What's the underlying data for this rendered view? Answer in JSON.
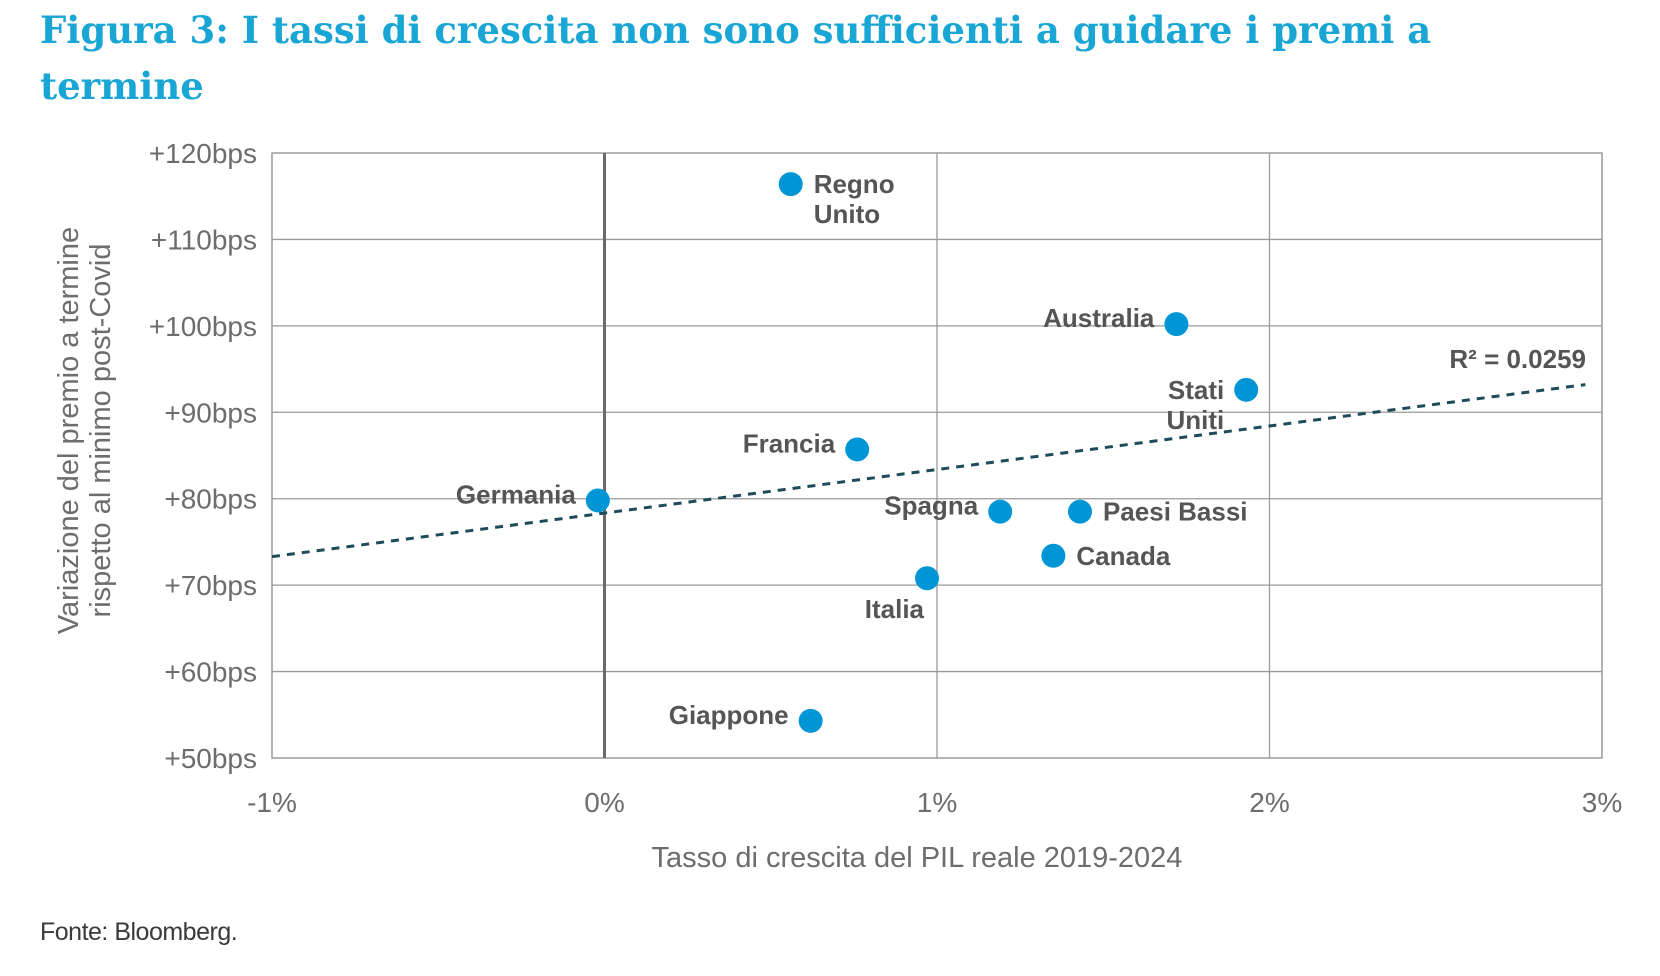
{
  "title": "Figura 3: I tassi di crescita non sono sufficienti a guidare i premi a termine",
  "source": "Fonte: Bloomberg.",
  "colors": {
    "title": "#1aa6d4",
    "point": "#0096d6",
    "trendline": "#1d4b5a",
    "grid": "#9a9a9a",
    "text": "#6d6d6d"
  },
  "chart_data": {
    "type": "scatter",
    "title": "",
    "xlabel": "Tasso di crescita del PIL reale 2019-2024",
    "ylabel_lines": [
      "Variazione del premio a termine",
      "rispetto al minimo post-Covid"
    ],
    "xlim": [
      -1,
      3
    ],
    "ylim": [
      50,
      120
    ],
    "x_ticks": [
      -1,
      0,
      1,
      2,
      3
    ],
    "x_tick_labels": [
      "-1%",
      "0%",
      "1%",
      "2%",
      "3%"
    ],
    "y_ticks": [
      50,
      60,
      70,
      80,
      90,
      100,
      110,
      120
    ],
    "y_tick_labels": [
      "+50bps",
      "+60bps",
      "+70bps",
      "+80bps",
      "+90bps",
      "+100bps",
      "+110bps",
      "+120bps"
    ],
    "grid": true,
    "points": [
      {
        "label": [
          "Regno",
          "Unito"
        ],
        "x": 0.56,
        "y": 116.4,
        "pos": "right"
      },
      {
        "label": [
          "Australia"
        ],
        "x": 1.72,
        "y": 100.2,
        "pos": "left"
      },
      {
        "label": [
          "Stati",
          "Uniti"
        ],
        "x": 1.93,
        "y": 92.6,
        "pos": "left"
      },
      {
        "label": [
          "Francia"
        ],
        "x": 0.76,
        "y": 85.7,
        "pos": "left"
      },
      {
        "label": [
          "Germania"
        ],
        "x": -0.02,
        "y": 79.8,
        "pos": "left"
      },
      {
        "label": [
          "Spagna"
        ],
        "x": 1.19,
        "y": 78.5,
        "pos": "left"
      },
      {
        "label": [
          "Paesi Bassi"
        ],
        "x": 1.43,
        "y": 78.5,
        "pos": "right"
      },
      {
        "label": [
          "Canada"
        ],
        "x": 1.35,
        "y": 73.4,
        "pos": "right"
      },
      {
        "label": [
          "Italia"
        ],
        "x": 0.97,
        "y": 70.8,
        "pos": "below"
      },
      {
        "label": [
          "Giappone"
        ],
        "x": 0.62,
        "y": 54.3,
        "pos": "left"
      }
    ],
    "trendline": {
      "x": [
        -1,
        2.95
      ],
      "y": [
        73.3,
        93.2
      ],
      "style": "dashed"
    },
    "r2_label": "R² = 0.0259"
  }
}
